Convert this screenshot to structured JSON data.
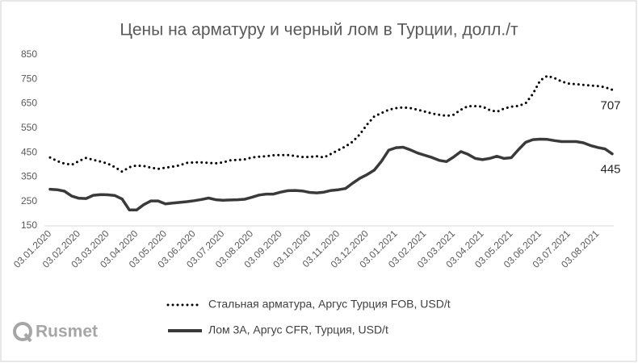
{
  "chart_data": {
    "type": "line",
    "title": "Цены на арматуру и черный лом в Турции, долл./т",
    "categories": [
      "03.01.2020",
      null,
      null,
      null,
      "03.02.2020",
      null,
      null,
      null,
      "03.03.2020",
      null,
      null,
      null,
      "03.04.2020",
      null,
      null,
      null,
      "03.05.2020",
      null,
      null,
      null,
      "03.06.2020",
      null,
      null,
      null,
      "03.07.2020",
      null,
      null,
      null,
      "03.08.2020",
      null,
      null,
      null,
      "03.09.2020",
      null,
      null,
      null,
      "03.10.2020",
      null,
      null,
      null,
      "03.11.2020",
      null,
      null,
      null,
      "03.12.2020",
      null,
      null,
      null,
      "03.01.2021",
      null,
      null,
      null,
      "03.02.2021",
      null,
      null,
      null,
      "03.03.2021",
      null,
      null,
      null,
      "03.04.2021",
      null,
      null,
      null,
      "03.05.2021",
      null,
      null,
      null,
      "03.06.2021",
      null,
      null,
      null,
      "03.07.2021",
      null,
      null,
      null,
      "03.08.2021",
      null,
      null
    ],
    "series": [
      {
        "name": "Стальная арматура, Аргус Турция FOB, USD/t",
        "color": "#000000",
        "style": "dotted",
        "values": [
          430,
          415,
          405,
          400,
          415,
          428,
          420,
          413,
          405,
          390,
          372,
          390,
          397,
          395,
          388,
          383,
          388,
          392,
          398,
          408,
          410,
          410,
          408,
          406,
          410,
          418,
          420,
          422,
          430,
          433,
          435,
          439,
          440,
          440,
          436,
          432,
          432,
          435,
          430,
          445,
          460,
          475,
          495,
          525,
          565,
          598,
          612,
          625,
          632,
          635,
          632,
          625,
          618,
          610,
          605,
          600,
          605,
          625,
          640,
          640,
          638,
          624,
          617,
          630,
          638,
          641,
          652,
          690,
          745,
          764,
          755,
          741,
          732,
          730,
          727,
          725,
          722,
          718,
          707
        ]
      },
      {
        "name": "Лом 3А, Аргус CFR, Турция, USD/t",
        "color": "#3a3a3a",
        "style": "solid",
        "values": [
          300,
          298,
          292,
          272,
          263,
          262,
          275,
          278,
          277,
          274,
          260,
          215,
          215,
          237,
          252,
          252,
          240,
          243,
          246,
          249,
          253,
          258,
          264,
          257,
          255,
          256,
          257,
          259,
          267,
          276,
          280,
          280,
          288,
          294,
          295,
          293,
          287,
          285,
          288,
          295,
          298,
          303,
          325,
          345,
          360,
          378,
          415,
          460,
          470,
          472,
          461,
          448,
          439,
          430,
          418,
          413,
          432,
          454,
          443,
          426,
          421,
          426,
          435,
          426,
          429,
          462,
          492,
          503,
          505,
          504,
          499,
          495,
          495,
          495,
          490,
          479,
          471,
          465,
          445
        ]
      }
    ],
    "ylim": [
      150,
      850
    ],
    "yticks": [
      150,
      250,
      350,
      450,
      550,
      650,
      750,
      850
    ],
    "grid": false,
    "end_labels": true,
    "legend": "bottom"
  },
  "logo": "Rusmet"
}
